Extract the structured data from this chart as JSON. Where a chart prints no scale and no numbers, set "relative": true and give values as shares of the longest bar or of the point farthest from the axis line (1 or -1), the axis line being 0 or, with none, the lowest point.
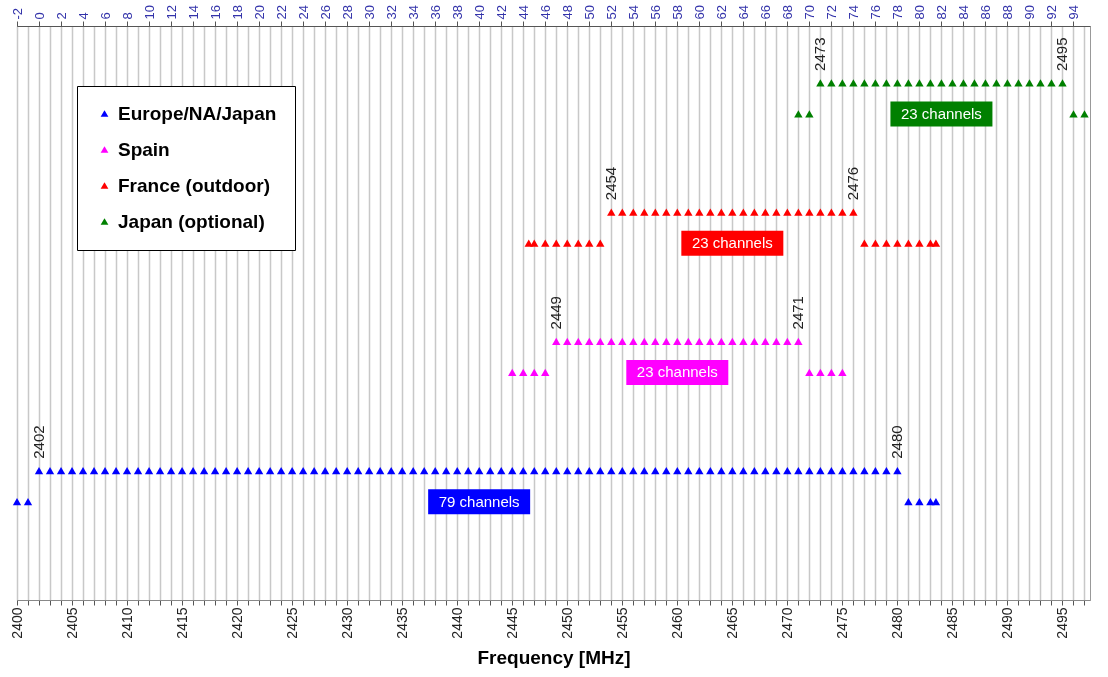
{
  "chart_data": {
    "type": "scatter",
    "xlabel": "Frequency [MHz]",
    "relative": true,
    "marker": "triangle",
    "grid": "x",
    "legend": "top left",
    "tick_labels": "x",
    "xlim": [
      2400,
      2497.5
    ],
    "xticks": [
      2400,
      {
        "value": 2401,
        "label": null
      },
      {
        "value": 2402,
        "label": null
      },
      {
        "value": 2403,
        "label": null
      },
      {
        "value": 2404,
        "label": null
      },
      2405,
      {
        "value": 2406,
        "label": null
      },
      {
        "value": 2407,
        "label": null
      },
      {
        "value": 2408,
        "label": null
      },
      {
        "value": 2409,
        "label": null
      },
      2410,
      {
        "value": 2411,
        "label": null
      },
      {
        "value": 2412,
        "label": null
      },
      {
        "value": 2413,
        "label": null
      },
      {
        "value": 2414,
        "label": null
      },
      2415,
      {
        "value": 2416,
        "label": null
      },
      {
        "value": 2417,
        "label": null
      },
      {
        "value": 2418,
        "label": null
      },
      {
        "value": 2419,
        "label": null
      },
      2420,
      {
        "value": 2421,
        "label": null
      },
      {
        "value": 2422,
        "label": null
      },
      {
        "value": 2423,
        "label": null
      },
      {
        "value": 2424,
        "label": null
      },
      2425,
      {
        "value": 2426,
        "label": null
      },
      {
        "value": 2427,
        "label": null
      },
      {
        "value": 2428,
        "label": null
      },
      {
        "value": 2429,
        "label": null
      },
      2430,
      {
        "value": 2431,
        "label": null
      },
      {
        "value": 2432,
        "label": null
      },
      {
        "value": 2433,
        "label": null
      },
      {
        "value": 2434,
        "label": null
      },
      2435,
      {
        "value": 2436,
        "label": null
      },
      {
        "value": 2437,
        "label": null
      },
      {
        "value": 2438,
        "label": null
      },
      {
        "value": 2439,
        "label": null
      },
      2440,
      {
        "value": 2441,
        "label": null
      },
      {
        "value": 2442,
        "label": null
      },
      {
        "value": 2443,
        "label": null
      },
      {
        "value": 2444,
        "label": null
      },
      2445,
      {
        "value": 2446,
        "label": null
      },
      {
        "value": 2447,
        "label": null
      },
      {
        "value": 2448,
        "label": null
      },
      {
        "value": 2449,
        "label": null
      },
      2450,
      {
        "value": 2451,
        "label": null
      },
      {
        "value": 2452,
        "label": null
      },
      {
        "value": 2453,
        "label": null
      },
      {
        "value": 2454,
        "label": null
      },
      2455,
      {
        "value": 2456,
        "label": null
      },
      {
        "value": 2457,
        "label": null
      },
      {
        "value": 2458,
        "label": null
      },
      {
        "value": 2459,
        "label": null
      },
      2460,
      {
        "value": 2461,
        "label": null
      },
      {
        "value": 2462,
        "label": null
      },
      {
        "value": 2463,
        "label": null
      },
      {
        "value": 2464,
        "label": null
      },
      2465,
      {
        "value": 2466,
        "label": null
      },
      {
        "value": 2467,
        "label": null
      },
      {
        "value": 2468,
        "label": null
      },
      {
        "value": 2469,
        "label": null
      },
      2470,
      {
        "value": 2471,
        "label": null
      },
      {
        "value": 2472,
        "label": null
      },
      {
        "value": 2473,
        "label": null
      },
      {
        "value": 2474,
        "label": null
      },
      2475,
      {
        "value": 2476,
        "label": null
      },
      {
        "value": 2477,
        "label": null
      },
      {
        "value": 2478,
        "label": null
      },
      {
        "value": 2479,
        "label": null
      },
      2480,
      {
        "value": 2481,
        "label": null
      },
      {
        "value": 2482,
        "label": null
      },
      {
        "value": 2483,
        "label": null
      },
      {
        "value": 2484,
        "label": null
      },
      2485,
      {
        "value": 2486,
        "label": null
      },
      {
        "value": 2487,
        "label": null
      },
      {
        "value": 2488,
        "label": null
      },
      {
        "value": 2489,
        "label": null
      },
      2490,
      {
        "value": 2491,
        "label": null
      },
      {
        "value": 2492,
        "label": null
      },
      {
        "value": 2493,
        "label": null
      },
      {
        "value": 2494,
        "label": null
      },
      2495,
      {
        "value": 2496,
        "label": null
      },
      {
        "value": 2497,
        "label": null
      }
    ],
    "x2lim": [
      -2,
      95.5
    ],
    "x2ticks": [
      -2,
      0,
      2,
      4,
      6,
      8,
      10,
      12,
      14,
      16,
      18,
      20,
      22,
      24,
      26,
      28,
      30,
      32,
      34,
      36,
      38,
      40,
      42,
      44,
      46,
      48,
      50,
      52,
      54,
      56,
      58,
      60,
      62,
      64,
      66,
      68,
      70,
      72,
      74,
      76,
      78,
      80,
      82,
      84,
      86,
      88,
      90,
      92,
      94
    ],
    "series": [
      {
        "name": "Europe/NA/Japan",
        "color": "#0000ff",
        "x": [
          2400,
          2401,
          2402,
          2403,
          2404,
          2405,
          2406,
          2407,
          2408,
          2409,
          2410,
          2411,
          2412,
          2413,
          2414,
          2415,
          2416,
          2417,
          2418,
          2419,
          2420,
          2421,
          2422,
          2423,
          2424,
          2425,
          2426,
          2427,
          2428,
          2429,
          2430,
          2431,
          2432,
          2433,
          2434,
          2435,
          2436,
          2437,
          2438,
          2439,
          2440,
          2441,
          2442,
          2443,
          2444,
          2445,
          2446,
          2447,
          2448,
          2449,
          2450,
          2451,
          2452,
          2453,
          2454,
          2455,
          2456,
          2457,
          2458,
          2459,
          2460,
          2461,
          2462,
          2463,
          2464,
          2465,
          2466,
          2467,
          2468,
          2469,
          2470,
          2471,
          2472,
          2473,
          2474,
          2475,
          2476,
          2477,
          2478,
          2479,
          2480,
          2481,
          2482,
          2483,
          2483.5
        ],
        "values": [
          0.19,
          0.19,
          0.25,
          0.25,
          0.25,
          0.25,
          0.25,
          0.25,
          0.25,
          0.25,
          0.25,
          0.25,
          0.25,
          0.25,
          0.25,
          0.25,
          0.25,
          0.25,
          0.25,
          0.25,
          0.25,
          0.25,
          0.25,
          0.25,
          0.25,
          0.25,
          0.25,
          0.25,
          0.25,
          0.25,
          0.25,
          0.25,
          0.25,
          0.25,
          0.25,
          0.25,
          0.25,
          0.25,
          0.25,
          0.25,
          0.25,
          0.25,
          0.25,
          0.25,
          0.25,
          0.25,
          0.25,
          0.25,
          0.25,
          0.25,
          0.25,
          0.25,
          0.25,
          0.25,
          0.25,
          0.25,
          0.25,
          0.25,
          0.25,
          0.25,
          0.25,
          0.25,
          0.25,
          0.25,
          0.25,
          0.25,
          0.25,
          0.25,
          0.25,
          0.25,
          0.25,
          0.25,
          0.25,
          0.25,
          0.25,
          0.25,
          0.25,
          0.25,
          0.25,
          0.25,
          0.25,
          0.19,
          0.19,
          0.19,
          0.19
        ]
      },
      {
        "name": "Spain",
        "color": "#ff00ff",
        "x": [
          2445,
          2446,
          2447,
          2448,
          2449,
          2450,
          2451,
          2452,
          2453,
          2454,
          2455,
          2456,
          2457,
          2458,
          2459,
          2460,
          2461,
          2462,
          2463,
          2464,
          2465,
          2466,
          2467,
          2468,
          2469,
          2470,
          2471,
          2472,
          2473,
          2474,
          2475
        ],
        "values": [
          0.44,
          0.44,
          0.44,
          0.44,
          0.5,
          0.5,
          0.5,
          0.5,
          0.5,
          0.5,
          0.5,
          0.5,
          0.5,
          0.5,
          0.5,
          0.5,
          0.5,
          0.5,
          0.5,
          0.5,
          0.5,
          0.5,
          0.5,
          0.5,
          0.5,
          0.5,
          0.5,
          0.44,
          0.44,
          0.44,
          0.44
        ]
      },
      {
        "name": "France (outdoor)",
        "color": "#ff0000",
        "x": [
          2446.5,
          2447,
          2448,
          2449,
          2450,
          2451,
          2452,
          2453,
          2454,
          2455,
          2456,
          2457,
          2458,
          2459,
          2460,
          2461,
          2462,
          2463,
          2464,
          2465,
          2466,
          2467,
          2468,
          2469,
          2470,
          2471,
          2472,
          2473,
          2474,
          2475,
          2476,
          2477,
          2478,
          2479,
          2480,
          2481,
          2482,
          2483,
          2483.5
        ],
        "values": [
          0.69,
          0.69,
          0.69,
          0.69,
          0.69,
          0.69,
          0.69,
          0.69,
          0.75,
          0.75,
          0.75,
          0.75,
          0.75,
          0.75,
          0.75,
          0.75,
          0.75,
          0.75,
          0.75,
          0.75,
          0.75,
          0.75,
          0.75,
          0.75,
          0.75,
          0.75,
          0.75,
          0.75,
          0.75,
          0.75,
          0.75,
          0.69,
          0.69,
          0.69,
          0.69,
          0.69,
          0.69,
          0.69,
          0.69
        ]
      },
      {
        "name": "Japan (optional)",
        "color": "#008000",
        "x": [
          2471,
          2472,
          2473,
          2474,
          2475,
          2476,
          2477,
          2478,
          2479,
          2480,
          2481,
          2482,
          2483,
          2484,
          2485,
          2486,
          2487,
          2488,
          2489,
          2490,
          2491,
          2492,
          2493,
          2494,
          2495,
          2496,
          2497
        ],
        "values": [
          0.94,
          0.94,
          1,
          1,
          1,
          1,
          1,
          1,
          1,
          1,
          1,
          1,
          1,
          1,
          1,
          1,
          1,
          1,
          1,
          1,
          1,
          1,
          1,
          1,
          1,
          0.94,
          0.94
        ]
      }
    ],
    "annotations": [
      "79 channels",
      "23 channels",
      "23 channels",
      "23 channels",
      {
        "text": "2402",
        "x": 2402,
        "y": 0.25
      },
      {
        "text": "2480",
        "x": 2480,
        "y": 0.25
      },
      {
        "text": "2449",
        "x": 2449,
        "y": 0.5
      },
      {
        "text": "2471",
        "x": 2471,
        "y": 0.5
      },
      {
        "text": "2454",
        "x": 2454,
        "y": 0.75
      },
      {
        "text": "2476",
        "x": 2476,
        "y": 0.75
      },
      {
        "text": "2473",
        "x": 2473,
        "y": 1
      },
      {
        "text": "2495",
        "x": 2495,
        "y": 1
      }
    ]
  }
}
